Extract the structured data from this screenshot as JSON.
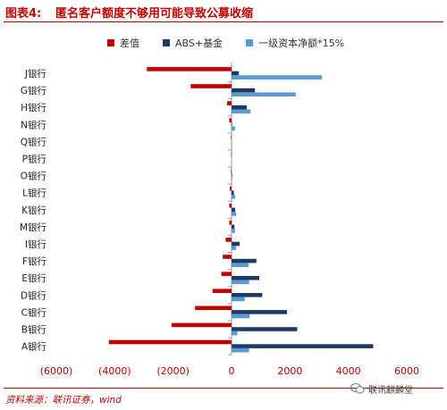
{
  "header": {
    "label": "图表4:",
    "title": "匿名客户额度不够用可能导致公募收缩"
  },
  "footer": {
    "source": "资料来源：联讯证券，wind",
    "watermark": "联讯麒麟堂"
  },
  "chart_data": {
    "type": "bar",
    "orientation": "horizontal",
    "categories": [
      "J银行",
      "G银行",
      "H银行",
      "N银行",
      "Q银行",
      "P银行",
      "O银行",
      "L银行",
      "K银行",
      "M银行",
      "I银行",
      "F银行",
      "E银行",
      "D银行",
      "C银行",
      "B银行",
      "A银行"
    ],
    "series": [
      {
        "name": "差值",
        "color": "#c00000",
        "values": [
          2900,
          1400,
          150,
          80,
          20,
          10,
          20,
          60,
          80,
          80,
          200,
          300,
          350,
          650,
          1250,
          2050,
          4200
        ]
      },
      {
        "name": "ABS+基金",
        "color": "#1f3864",
        "values": [
          250,
          800,
          520,
          20,
          0,
          0,
          20,
          80,
          120,
          100,
          280,
          850,
          950,
          1050,
          1900,
          2250,
          4850
        ]
      },
      {
        "name": "一级资本净额*15%",
        "color": "#5b9bd5",
        "values": [
          3100,
          2200,
          650,
          120,
          10,
          0,
          20,
          120,
          160,
          120,
          150,
          580,
          600,
          450,
          620,
          200,
          600
        ]
      }
    ],
    "negative_series": [
      "差值"
    ],
    "xlim": [
      -6000,
      6000
    ],
    "xticks": [
      -6000,
      -4000,
      -2000,
      0,
      2000,
      4000,
      6000
    ],
    "xtick_labels": [
      "(6000)",
      "(4000)",
      "(2000)",
      "0",
      "2000",
      "4000",
      "6000"
    ],
    "tick_label_color": "#c00000",
    "grid": false,
    "legend_position": "top"
  }
}
